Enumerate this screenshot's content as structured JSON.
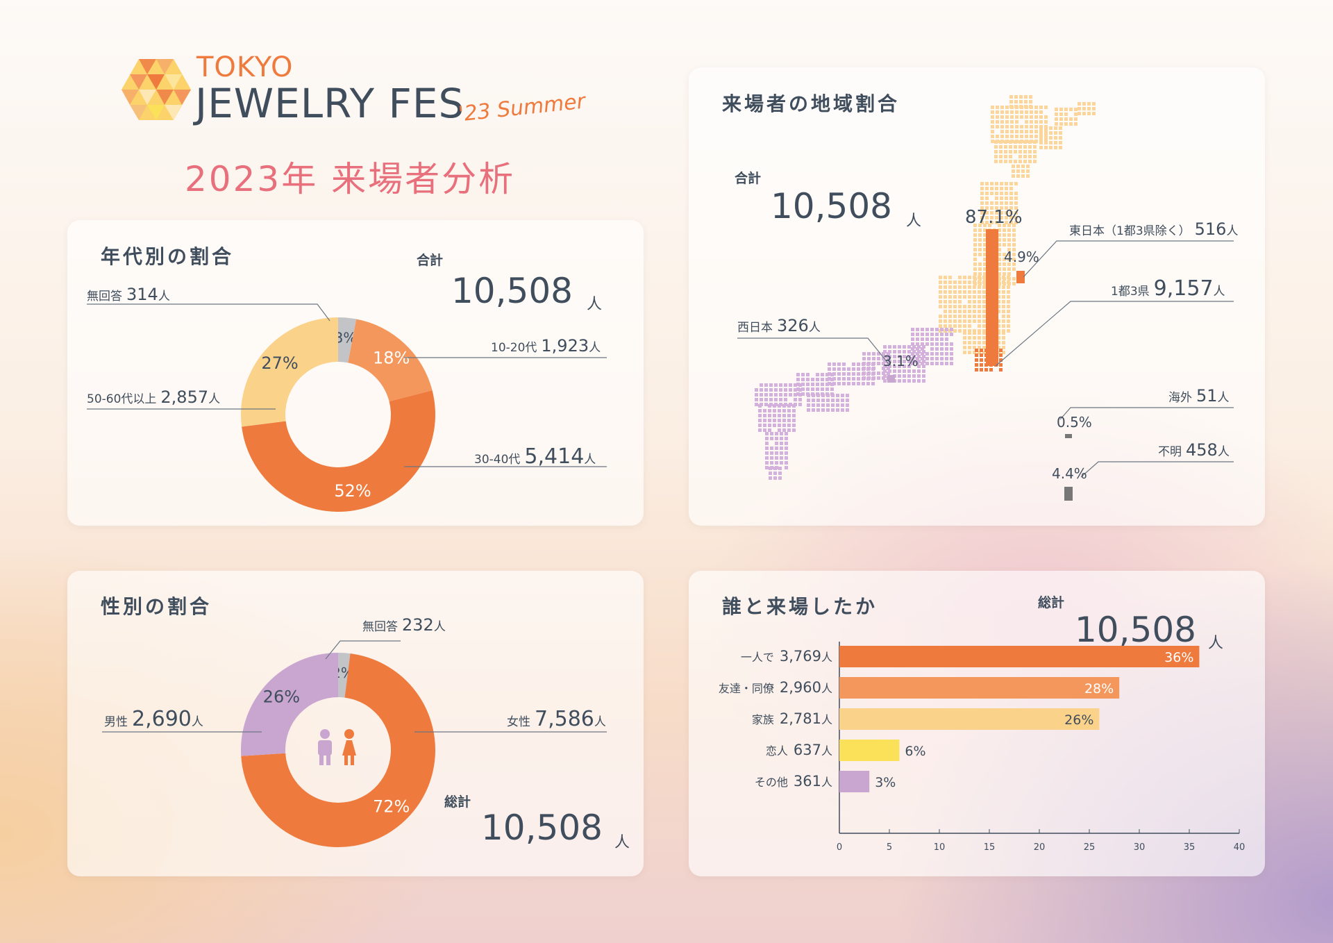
{
  "header": {
    "logo_top": "TOKYO",
    "logo_main": "JEWELRY FES",
    "logo_sub": "'23 Summer",
    "title": "2023年 来場者分析"
  },
  "colors": {
    "orange": "#ee7a3d",
    "light_orange": "#f4975c",
    "peach": "#fad28a",
    "yellow": "#fbe05a",
    "lilac": "#c9a6d0",
    "gray": "#c2c4c8",
    "text": "#3f4d5c",
    "title_pink": "#e86f7c"
  },
  "age": {
    "title": "年代別の割合",
    "total_label": "合計",
    "total_value": "10,508",
    "total_unit": "人",
    "labels": [
      {
        "name": "無回答",
        "count": "314",
        "unit": "人"
      },
      {
        "name": "10-20代",
        "count": "1,923",
        "unit": "人"
      },
      {
        "name": "30-40代",
        "count": "5,414",
        "unit": "人"
      },
      {
        "name": "50-60代以上",
        "count": "2,857",
        "unit": "人"
      }
    ]
  },
  "gender": {
    "title": "性別の割合",
    "total_label": "総計",
    "total_value": "10,508",
    "total_unit": "人",
    "labels": [
      {
        "name": "無回答",
        "count": "232",
        "unit": "人"
      },
      {
        "name": "女性",
        "count": "7,586",
        "unit": "人"
      },
      {
        "name": "男性",
        "count": "2,690",
        "unit": "人"
      }
    ]
  },
  "region": {
    "title": "来場者の地域割合",
    "total_label": "合計",
    "total_value": "10,508",
    "total_unit": "人",
    "labels": [
      {
        "name": "東日本（1都3県除く）",
        "count": "516",
        "unit": "人",
        "pct": "4.9%"
      },
      {
        "name": "1都3県",
        "count": "9,157",
        "unit": "人",
        "pct": "87.1%"
      },
      {
        "name": "西日本",
        "count": "326",
        "unit": "人",
        "pct": "3.1%"
      },
      {
        "name": "海外",
        "count": "51",
        "unit": "人",
        "pct": "0.5%"
      },
      {
        "name": "不明",
        "count": "458",
        "unit": "人",
        "pct": "4.4%"
      }
    ]
  },
  "companion": {
    "title": "誰と来場したか",
    "total_label": "総計",
    "total_value": "10,508",
    "total_unit": "人"
  },
  "chart_data": [
    {
      "type": "pie",
      "title": "年代別の割合",
      "categories": [
        "無回答",
        "10-20代",
        "30-40代",
        "50-60代以上"
      ],
      "values": [
        3,
        18,
        52,
        27
      ],
      "counts": [
        314,
        1923,
        5414,
        2857
      ],
      "colors": [
        "#c2c4c8",
        "#f4975c",
        "#ee7a3d",
        "#fad28a"
      ]
    },
    {
      "type": "pie",
      "title": "性別の割合",
      "categories": [
        "無回答",
        "女性",
        "男性"
      ],
      "values": [
        2,
        72,
        26
      ],
      "counts": [
        232,
        7586,
        2690
      ],
      "colors": [
        "#c2c4c8",
        "#ee7a3d",
        "#c9a6d0"
      ]
    },
    {
      "type": "bar",
      "title": "来場者の地域割合",
      "categories": [
        "1都3県",
        "東日本（1都3県除く）",
        "西日本",
        "海外",
        "不明"
      ],
      "values": [
        87.1,
        4.9,
        3.1,
        0.5,
        4.4
      ],
      "counts": [
        9157,
        516,
        326,
        51,
        458
      ]
    },
    {
      "type": "bar",
      "orientation": "horizontal",
      "title": "誰と来場したか",
      "categories": [
        "一人で",
        "友達・同僚",
        "家族",
        "恋人",
        "その他"
      ],
      "values": [
        36,
        28,
        26,
        6,
        3
      ],
      "counts": [
        "3,769",
        "2,960",
        "2,781",
        "637",
        "361"
      ],
      "unit": "人",
      "colors": [
        "#ee7a3d",
        "#f4975c",
        "#fad28a",
        "#fbe05a",
        "#c9a6d0"
      ],
      "xlim": [
        0,
        40
      ],
      "xticks": [
        0,
        5,
        10,
        15,
        20,
        25,
        30,
        35,
        40
      ]
    }
  ]
}
